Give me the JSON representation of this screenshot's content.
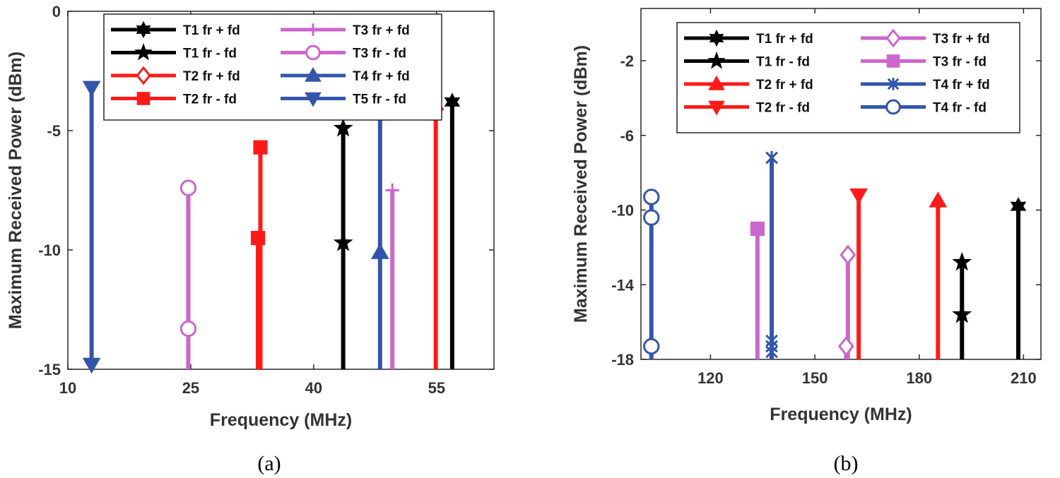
{
  "colors": {
    "black": "#000000",
    "red": "#ff1a1a",
    "magenta": "#cc66cc",
    "blue": "#3355aa"
  },
  "chart_data": [
    {
      "panel": "(a)",
      "type": "stem",
      "xlabel": "Frequency (MHz)",
      "ylabel": "Maximum Received Power (dBm)",
      "xlim": [
        10,
        62
      ],
      "ylim": [
        -15,
        0
      ],
      "xticks": [
        10,
        25,
        40,
        55
      ],
      "yticks": [
        0,
        -5,
        -10,
        -15
      ],
      "legend_position": "top",
      "series": [
        {
          "name": "T1 fr + fd",
          "color": "#000000",
          "marker": "hexagram",
          "points": [
            [
              56.9,
              -3.8
            ]
          ]
        },
        {
          "name": "T1 fr - fd",
          "color": "#000000",
          "marker": "pentagram",
          "points": [
            [
              43.6,
              -4.9
            ],
            [
              43.6,
              -9.7
            ]
          ]
        },
        {
          "name": "T2 fr + fd",
          "color": "#ff1a1a",
          "marker": "diamond",
          "points": [
            [
              54.9,
              -4.1
            ]
          ]
        },
        {
          "name": "T2 fr - fd",
          "color": "#ff1a1a",
          "marker": "square",
          "points": [
            [
              33.5,
              -5.7
            ],
            [
              33.2,
              -9.5
            ]
          ]
        },
        {
          "name": "T3 fr + fd",
          "color": "#cc66cc",
          "marker": "plus",
          "points": [
            [
              49.6,
              -7.5
            ]
          ]
        },
        {
          "name": "T3 fr - fd",
          "color": "#cc66cc",
          "marker": "circle",
          "points": [
            [
              24.7,
              -7.4
            ],
            [
              24.7,
              -13.3
            ]
          ]
        },
        {
          "name": "T4 fr + fd",
          "color": "#3355aa",
          "marker": "triangle-up",
          "points": [
            [
              48.1,
              -10.1
            ],
            [
              48.1,
              -4.2
            ]
          ]
        },
        {
          "name": "T5 fr - fd",
          "color": "#3355aa",
          "marker": "triangle-down",
          "points": [
            [
              12.9,
              -3.2
            ],
            [
              12.9,
              -14.8
            ]
          ]
        }
      ]
    },
    {
      "panel": "(b)",
      "type": "stem",
      "xlabel": "Frequency (MHz)",
      "ylabel": "Maximum Received Power (dBm)",
      "xlim": [
        100,
        215
      ],
      "ylim": [
        -18,
        0.8
      ],
      "xticks": [
        120,
        150,
        180,
        210
      ],
      "yticks": [
        -2,
        -6,
        -10,
        -14,
        -18
      ],
      "legend_position": "top",
      "series": [
        {
          "name": "T1 fr + fd",
          "color": "#000000",
          "marker": "hexagram",
          "points": [
            [
              208.5,
              -9.8
            ]
          ]
        },
        {
          "name": "T1 fr - fd",
          "color": "#000000",
          "marker": "pentagram",
          "points": [
            [
              192.3,
              -12.8
            ],
            [
              192.3,
              -15.6
            ]
          ]
        },
        {
          "name": "T2 fr + fd",
          "color": "#ff1a1a",
          "marker": "triangle-up",
          "points": [
            [
              185.4,
              -9.5
            ]
          ]
        },
        {
          "name": "T2 fr - fd",
          "color": "#ff1a1a",
          "marker": "triangle-down",
          "points": [
            [
              162.6,
              -9.2
            ]
          ]
        },
        {
          "name": "T3 fr + fd",
          "color": "#cc66cc",
          "marker": "diamond",
          "points": [
            [
              159.5,
              -12.4
            ],
            [
              159.0,
              -17.3
            ]
          ]
        },
        {
          "name": "T3 fr - fd",
          "color": "#cc66cc",
          "marker": "square",
          "points": [
            [
              133.5,
              -11.0
            ]
          ]
        },
        {
          "name": "T4 fr + fd",
          "color": "#3355aa",
          "marker": "x-star",
          "points": [
            [
              137.6,
              -7.2
            ],
            [
              137.6,
              -17.0
            ],
            [
              137.6,
              -17.3
            ],
            [
              137.6,
              -17.6
            ]
          ]
        },
        {
          "name": "T4 fr - fd",
          "color": "#3355aa",
          "marker": "circle",
          "points": [
            [
              103.0,
              -9.3
            ],
            [
              103.0,
              -10.4
            ],
            [
              103.0,
              -17.3
            ]
          ]
        }
      ]
    }
  ]
}
